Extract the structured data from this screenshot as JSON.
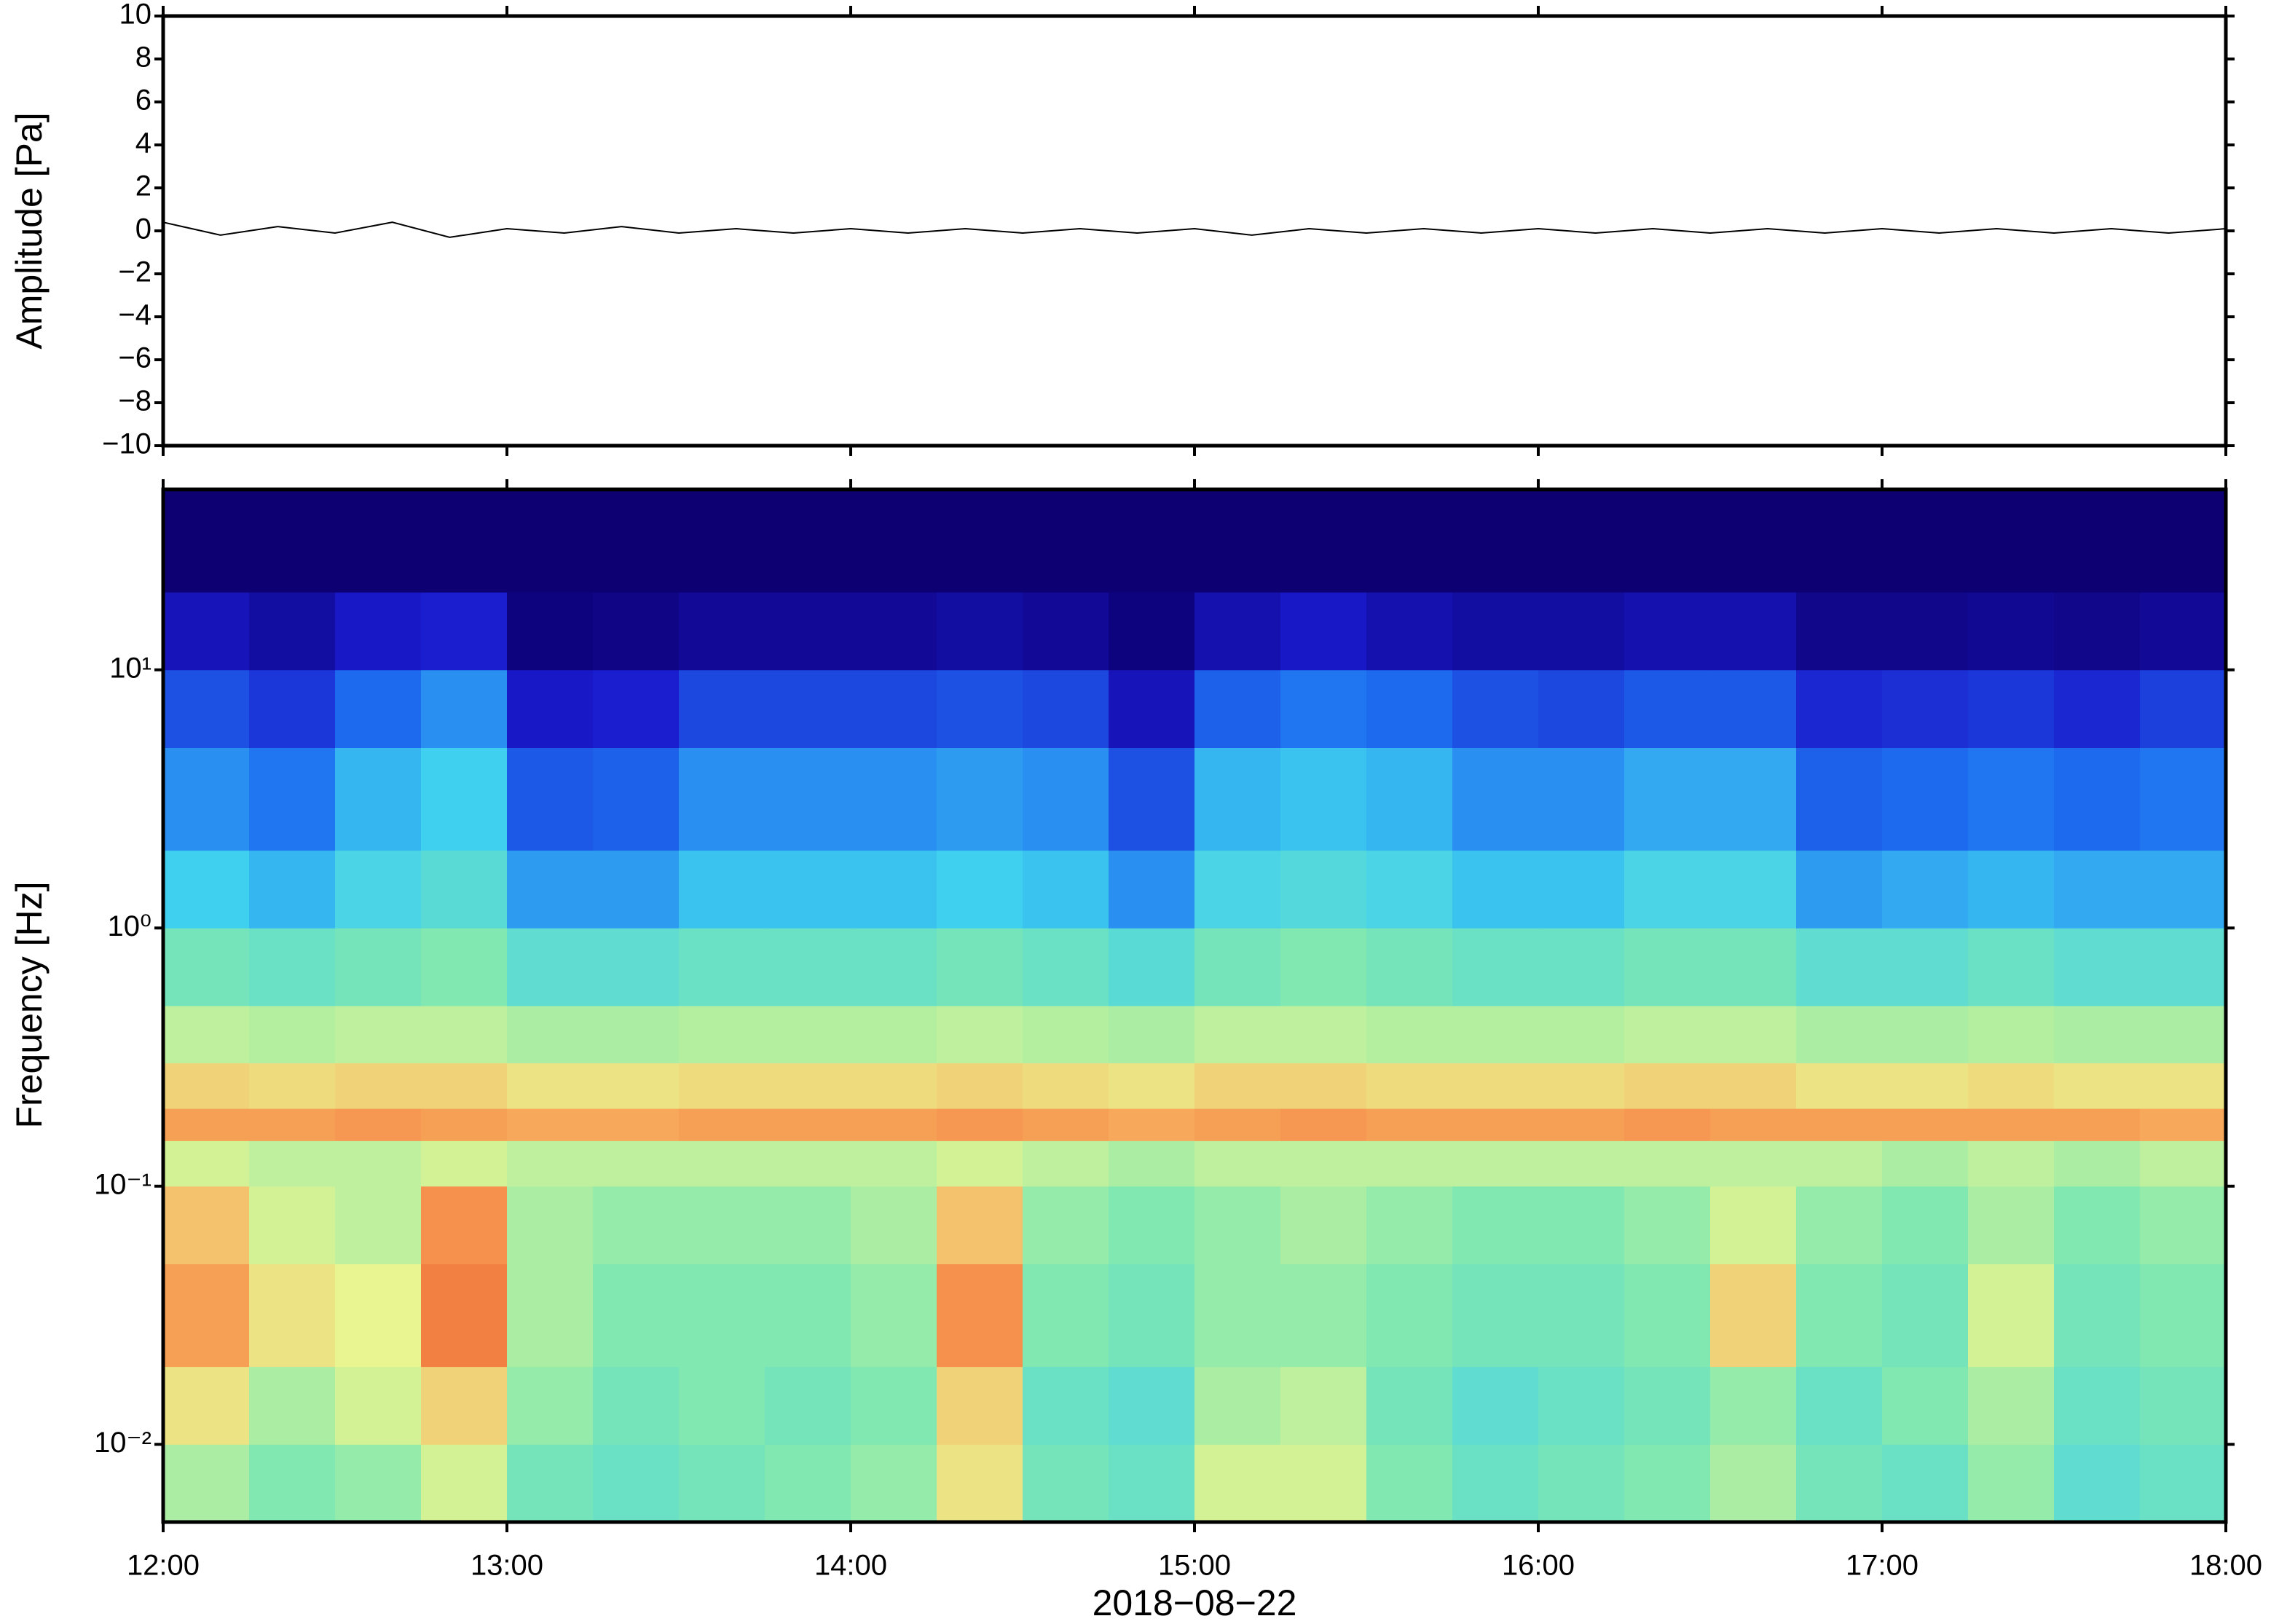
{
  "chart_data": [
    {
      "type": "line",
      "ylabel": "Amplitude [Pa]",
      "color": "#000000",
      "x": [
        "12:00",
        "12:10",
        "12:20",
        "12:30",
        "12:40",
        "12:50",
        "13:00",
        "13:10",
        "13:20",
        "13:30",
        "13:40",
        "13:50",
        "14:00",
        "14:10",
        "14:20",
        "14:30",
        "14:40",
        "14:50",
        "15:00",
        "15:10",
        "15:20",
        "15:30",
        "15:40",
        "15:50",
        "16:00",
        "16:10",
        "16:20",
        "16:30",
        "16:40",
        "16:50",
        "17:00",
        "17:10",
        "17:20",
        "17:30",
        "17:40",
        "17:50",
        "18:00"
      ],
      "values": [
        0.4,
        -0.2,
        0.2,
        -0.1,
        0.4,
        -0.3,
        0.1,
        -0.1,
        0.2,
        -0.1,
        0.1,
        -0.1,
        0.1,
        -0.1,
        0.1,
        -0.1,
        0.1,
        -0.1,
        0.1,
        -0.2,
        0.1,
        -0.1,
        0.1,
        -0.1,
        0.1,
        -0.1,
        0.1,
        -0.1,
        0.1,
        -0.1,
        0.1,
        -0.1,
        0.1,
        -0.1,
        0.1,
        -0.1,
        0.1
      ],
      "xlim": [
        "12:00",
        "18:00"
      ],
      "ylim": [
        -10,
        10
      ],
      "yticks": [
        {
          "value": -10,
          "label": "−10"
        },
        {
          "value": -8,
          "label": "−8"
        },
        {
          "value": -6,
          "label": "−6"
        },
        {
          "value": -4,
          "label": "−4"
        },
        {
          "value": -2,
          "label": "−2"
        },
        0,
        2,
        4,
        6,
        8,
        10
      ]
    },
    {
      "type": "heatmap",
      "ylabel": "Frequency [Hz]",
      "xlabel": "2018−08−22",
      "log_y": true,
      "x": [
        "12:00",
        "12:15",
        "12:30",
        "12:45",
        "13:00",
        "13:15",
        "13:30",
        "13:45",
        "14:00",
        "14:15",
        "14:30",
        "14:45",
        "15:00",
        "15:15",
        "15:30",
        "15:45",
        "16:00",
        "16:15",
        "16:30",
        "16:45",
        "17:00",
        "17:15",
        "17:30",
        "17:45"
      ],
      "xlim": [
        "12:00",
        "18:00"
      ],
      "xticks": [
        "12:00",
        "13:00",
        "14:00",
        "15:00",
        "16:00",
        "17:00",
        "18:00"
      ],
      "ybins": [
        0.005,
        0.01,
        0.02,
        0.05,
        0.1,
        0.15,
        0.2,
        0.3,
        0.5,
        1,
        2,
        5,
        10,
        20,
        50
      ],
      "ylim": [
        0.005,
        50
      ],
      "yticks": [
        {
          "value": 0.01,
          "label": "10⁻²"
        },
        {
          "value": 0.1,
          "label": "10⁻¹"
        },
        {
          "value": 1,
          "label": "10⁰"
        },
        {
          "value": 10,
          "label": "10¹"
        }
      ],
      "colorscale": [
        [
          0,
          "#0c0073"
        ],
        [
          15,
          "#1a1acc"
        ],
        [
          35,
          "#1e6ef0"
        ],
        [
          50,
          "#3fd0f0"
        ],
        [
          62,
          "#80e8b0"
        ],
        [
          72,
          "#e8f590"
        ],
        [
          80,
          "#f8b060"
        ],
        [
          90,
          "#f06030"
        ]
      ],
      "values": [
        [
          66,
          62,
          64,
          70,
          60,
          58,
          60,
          62,
          64,
          74,
          60,
          58,
          70,
          70,
          62,
          58,
          60,
          62,
          66,
          60,
          58,
          64,
          56,
          58
        ],
        [
          74,
          66,
          70,
          76,
          64,
          60,
          62,
          60,
          62,
          76,
          58,
          56,
          66,
          68,
          60,
          56,
          58,
          60,
          64,
          58,
          62,
          66,
          58,
          60
        ],
        [
          82,
          74,
          72,
          86,
          66,
          62,
          62,
          62,
          64,
          84,
          62,
          60,
          64,
          64,
          62,
          60,
          60,
          62,
          76,
          62,
          60,
          70,
          60,
          62
        ],
        [
          78,
          70,
          68,
          84,
          66,
          64,
          64,
          64,
          66,
          78,
          64,
          62,
          64,
          66,
          64,
          62,
          62,
          64,
          70,
          64,
          62,
          66,
          62,
          64
        ],
        [
          70,
          68,
          68,
          70,
          68,
          68,
          68,
          68,
          68,
          70,
          68,
          66,
          68,
          68,
          68,
          68,
          68,
          68,
          68,
          68,
          66,
          68,
          66,
          68
        ],
        [
          82,
          82,
          83,
          82,
          81,
          81,
          82,
          82,
          82,
          83,
          82,
          81,
          82,
          83,
          82,
          82,
          82,
          83,
          82,
          82,
          82,
          82,
          82,
          81
        ],
        [
          76,
          75,
          76,
          76,
          74,
          74,
          75,
          75,
          75,
          76,
          75,
          74,
          76,
          76,
          75,
          75,
          75,
          76,
          76,
          74,
          74,
          75,
          74,
          74
        ],
        [
          68,
          67,
          68,
          68,
          66,
          66,
          67,
          67,
          67,
          68,
          67,
          66,
          68,
          68,
          67,
          67,
          67,
          68,
          68,
          66,
          66,
          67,
          66,
          66
        ],
        [
          60,
          58,
          60,
          62,
          56,
          56,
          58,
          58,
          58,
          60,
          58,
          55,
          60,
          62,
          60,
          58,
          58,
          60,
          60,
          56,
          56,
          58,
          56,
          56
        ],
        [
          50,
          46,
          52,
          55,
          42,
          42,
          48,
          48,
          48,
          50,
          48,
          40,
          52,
          54,
          52,
          48,
          48,
          52,
          52,
          42,
          44,
          46,
          44,
          44
        ],
        [
          40,
          36,
          46,
          50,
          30,
          32,
          40,
          40,
          40,
          42,
          40,
          28,
          46,
          48,
          46,
          40,
          40,
          44,
          44,
          32,
          34,
          36,
          34,
          36
        ],
        [
          28,
          22,
          34,
          40,
          14,
          16,
          26,
          26,
          26,
          28,
          26,
          12,
          32,
          36,
          34,
          28,
          26,
          30,
          30,
          18,
          20,
          22,
          18,
          24
        ],
        [
          12,
          8,
          14,
          16,
          2,
          3,
          6,
          6,
          6,
          8,
          6,
          2,
          10,
          14,
          10,
          8,
          8,
          10,
          10,
          4,
          4,
          5,
          4,
          6
        ],
        [
          0,
          0,
          0,
          0,
          0,
          0,
          0,
          0,
          0,
          0,
          0,
          0,
          0,
          0,
          0,
          0,
          0,
          0,
          0,
          0,
          0,
          0,
          0,
          0
        ]
      ]
    }
  ]
}
